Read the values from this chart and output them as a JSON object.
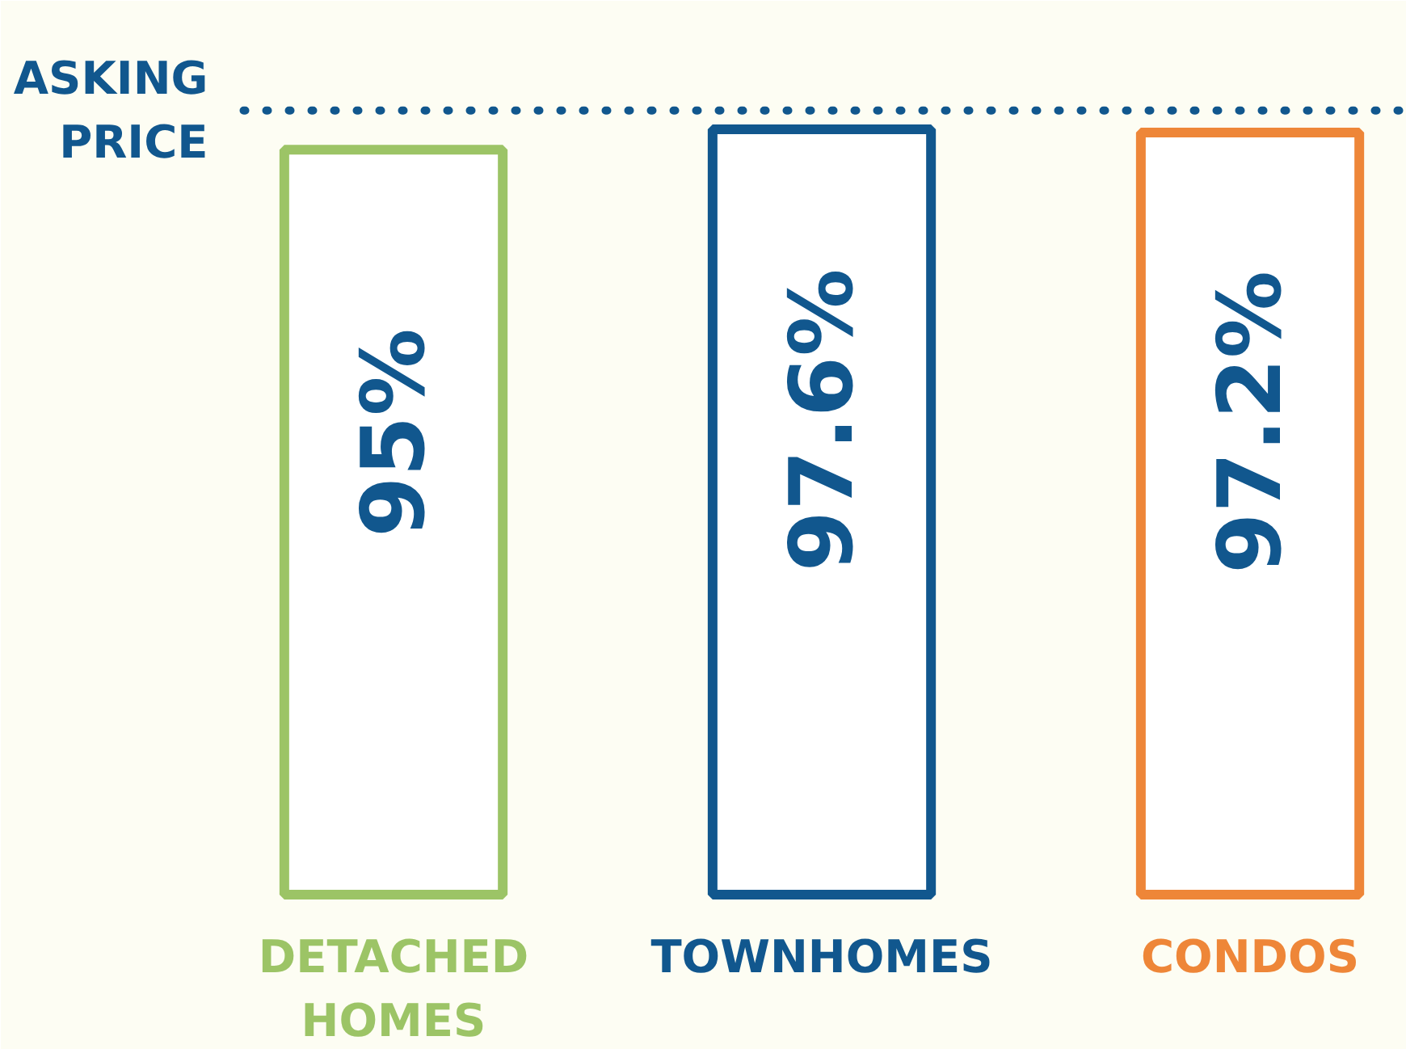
{
  "chart_data": {
    "type": "bar",
    "categories": [
      "DETACHED\nHOMES",
      "TOWNHOMES",
      "CONDOS"
    ],
    "values": [
      95,
      97.6,
      97.2
    ],
    "colors": [
      "#9cc466",
      "#11578e",
      "#ee8638"
    ],
    "value_labels": [
      "95%",
      "97.6%",
      "97.2%"
    ],
    "ref_lines": [
      {
        "axis": "y",
        "value": 100,
        "label": "ASKING\nPRICE",
        "color": "#11578e",
        "line_style": "dotted"
      }
    ],
    "grid": false,
    "tick_labels": false
  }
}
